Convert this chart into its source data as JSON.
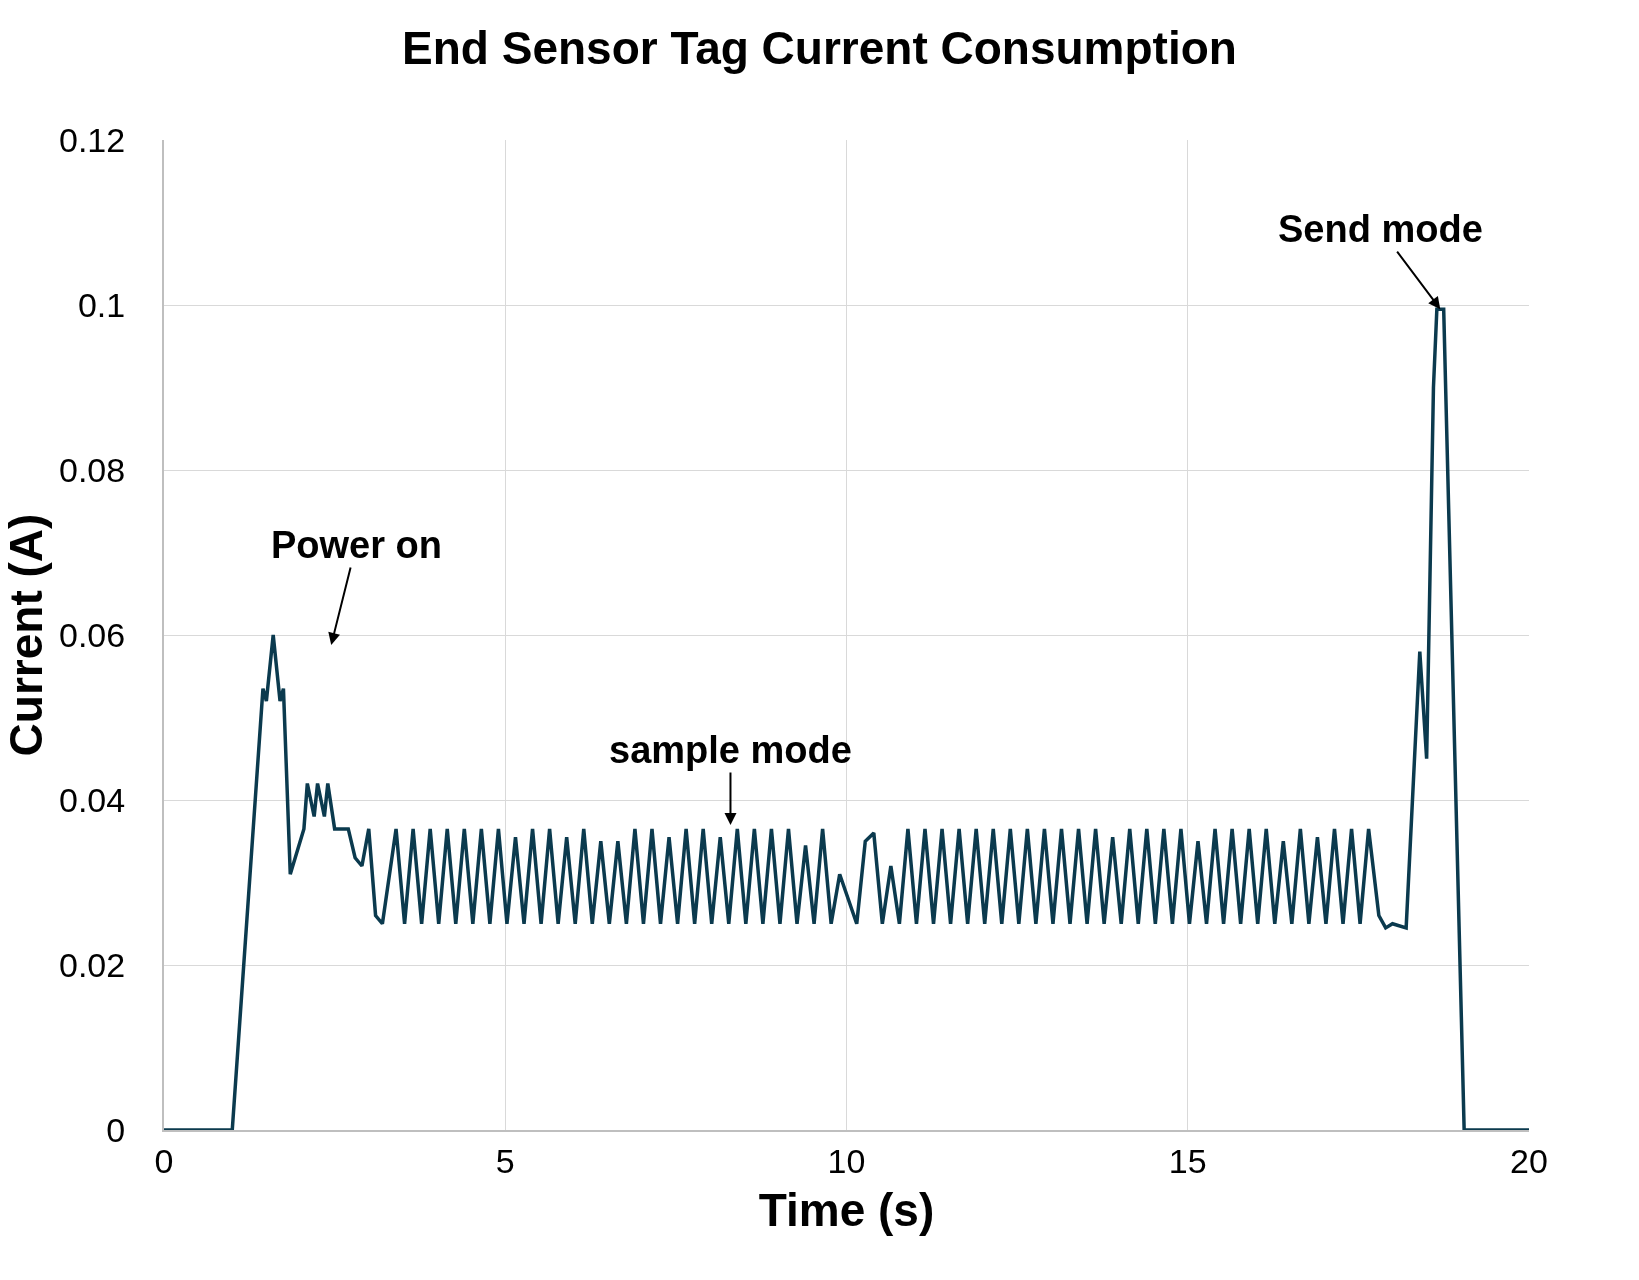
{
  "chart_data": {
    "type": "line",
    "title": "End Sensor Tag Current Consumption",
    "xlabel": "Time (s)",
    "ylabel": "Current (A)",
    "xlim": [
      0,
      20
    ],
    "xticks": [
      0,
      5,
      10,
      15,
      20
    ],
    "ylim": [
      0,
      0.12
    ],
    "yticks": [
      0,
      0.02,
      0.04,
      0.06,
      0.08,
      0.1,
      0.12
    ],
    "grid": true,
    "marker": "none",
    "line_style": "solid",
    "annotations": [
      "Power on",
      "sample mode",
      {
        "text": "Send mode",
        "x": 18.7,
        "y": 0.0995
      }
    ],
    "series": [
      {
        "color": "#0b3a4e",
        "x": [
          0,
          1,
          1.45,
          1.5,
          1.6,
          1.7,
          1.75,
          1.85,
          2.05,
          2.1,
          2.2,
          2.25,
          2.35,
          2.4,
          2.5,
          2.7,
          2.8,
          2.9,
          3.0,
          3.1,
          3.2,
          3.4,
          3.525,
          3.65,
          3.775,
          3.9,
          4.025,
          4.15,
          4.275,
          4.4,
          4.525,
          4.65,
          4.775,
          4.9,
          5.025,
          5.15,
          5.275,
          5.4,
          5.525,
          5.65,
          5.775,
          5.9,
          6.025,
          6.15,
          6.275,
          6.4,
          6.525,
          6.65,
          6.775,
          6.9,
          7.025,
          7.15,
          7.275,
          7.4,
          7.525,
          7.65,
          7.775,
          7.9,
          8.025,
          8.15,
          8.275,
          8.4,
          8.525,
          8.65,
          8.775,
          8.9,
          9.025,
          9.15,
          9.275,
          9.4,
          9.525,
          9.65,
          9.775,
          9.9,
          10.025,
          10.15,
          10.275,
          10.4,
          10.525,
          10.65,
          10.775,
          10.9,
          11.025,
          11.15,
          11.275,
          11.4,
          11.525,
          11.65,
          11.775,
          11.9,
          12.025,
          12.15,
          12.275,
          12.4,
          12.525,
          12.65,
          12.775,
          12.9,
          13.025,
          13.15,
          13.275,
          13.4,
          13.525,
          13.65,
          13.775,
          13.9,
          14.025,
          14.15,
          14.275,
          14.4,
          14.525,
          14.65,
          14.775,
          14.9,
          15.025,
          15.15,
          15.275,
          15.4,
          15.525,
          15.65,
          15.775,
          15.9,
          16.025,
          16.15,
          16.275,
          16.4,
          16.525,
          16.65,
          16.775,
          16.9,
          17.025,
          17.15,
          17.275,
          17.4,
          17.525,
          17.65,
          17.8,
          17.9,
          18.0,
          18.2,
          18.4,
          18.5,
          18.6,
          18.65,
          18.75,
          19.05,
          20
        ],
        "values": [
          0,
          0,
          0.0535,
          0.052,
          0.06,
          0.052,
          0.0535,
          0.031,
          0.0365,
          0.042,
          0.038,
          0.042,
          0.038,
          0.042,
          0.0365,
          0.0365,
          0.033,
          0.032,
          0.0365,
          0.026,
          0.025,
          0.0365,
          0.025,
          0.0365,
          0.025,
          0.0365,
          0.025,
          0.0365,
          0.025,
          0.0365,
          0.025,
          0.0365,
          0.025,
          0.0365,
          0.025,
          0.0355,
          0.025,
          0.0365,
          0.025,
          0.0365,
          0.025,
          0.0355,
          0.025,
          0.0365,
          0.025,
          0.035,
          0.025,
          0.035,
          0.025,
          0.0365,
          0.025,
          0.0365,
          0.025,
          0.0355,
          0.025,
          0.0365,
          0.025,
          0.0365,
          0.025,
          0.0355,
          0.025,
          0.0365,
          0.025,
          0.0365,
          0.025,
          0.0365,
          0.025,
          0.0365,
          0.025,
          0.0345,
          0.025,
          0.0365,
          0.025,
          0.031,
          0.028,
          0.025,
          0.035,
          0.036,
          0.025,
          0.032,
          0.025,
          0.0365,
          0.025,
          0.0365,
          0.025,
          0.0365,
          0.025,
          0.0365,
          0.025,
          0.0365,
          0.025,
          0.0365,
          0.025,
          0.0365,
          0.025,
          0.0365,
          0.025,
          0.0365,
          0.025,
          0.0365,
          0.025,
          0.0365,
          0.025,
          0.0365,
          0.025,
          0.0355,
          0.025,
          0.0365,
          0.025,
          0.0365,
          0.025,
          0.0365,
          0.025,
          0.0365,
          0.025,
          0.035,
          0.025,
          0.0365,
          0.025,
          0.0365,
          0.025,
          0.0365,
          0.025,
          0.0365,
          0.025,
          0.035,
          0.025,
          0.0365,
          0.025,
          0.0355,
          0.025,
          0.0365,
          0.025,
          0.0365,
          0.025,
          0.0365,
          0.026,
          0.0245,
          0.025,
          0.0245,
          0.058,
          0.045,
          0.09,
          0.0995,
          0.0995,
          0,
          0
        ]
      }
    ]
  }
}
